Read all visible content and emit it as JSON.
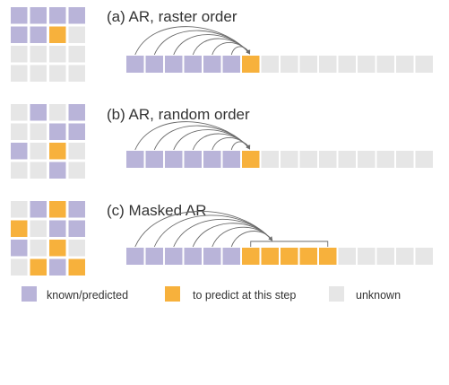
{
  "colors": {
    "known": "#b9b4d9",
    "predict": "#f7b13c",
    "unknown": "#e6e6e6",
    "arrow": "#6b6b6b"
  },
  "panels": [
    {
      "title": "(a) AR, raster order",
      "grid": [
        [
          "k",
          "k",
          "k",
          "k"
        ],
        [
          "k",
          "k",
          "p",
          "u"
        ],
        [
          "u",
          "u",
          "u",
          "u"
        ],
        [
          "u",
          "u",
          "u",
          "u"
        ]
      ],
      "sequence": {
        "known": 6,
        "predict": 1,
        "unknown": 9
      }
    },
    {
      "title": "(b) AR, random order",
      "grid": [
        [
          "u",
          "k",
          "u",
          "k"
        ],
        [
          "u",
          "u",
          "k",
          "k"
        ],
        [
          "k",
          "u",
          "p",
          "u"
        ],
        [
          "u",
          "u",
          "k",
          "u"
        ]
      ],
      "sequence": {
        "known": 6,
        "predict": 1,
        "unknown": 9
      }
    },
    {
      "title": "(c) Masked AR",
      "grid": [
        [
          "u",
          "k",
          "p",
          "k"
        ],
        [
          "p",
          "u",
          "k",
          "k"
        ],
        [
          "k",
          "u",
          "p",
          "u"
        ],
        [
          "u",
          "p",
          "k",
          "p"
        ]
      ],
      "sequence": {
        "known": 6,
        "predict": 5,
        "unknown": 5
      }
    }
  ],
  "legend": [
    {
      "key": "known",
      "label": "known/predicted"
    },
    {
      "key": "predict",
      "label": "to predict at this step"
    },
    {
      "key": "unknown",
      "label": "unknown"
    }
  ]
}
